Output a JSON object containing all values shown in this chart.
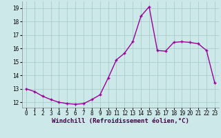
{
  "x": [
    0,
    1,
    2,
    3,
    4,
    5,
    6,
    7,
    8,
    9,
    10,
    11,
    12,
    13,
    14,
    15,
    16,
    17,
    18,
    19,
    20,
    21,
    22,
    23
  ],
  "y": [
    13.0,
    12.8,
    12.45,
    12.2,
    12.0,
    11.9,
    11.85,
    11.9,
    12.2,
    12.55,
    13.8,
    15.15,
    15.65,
    16.5,
    18.4,
    19.1,
    15.85,
    15.8,
    16.45,
    16.5,
    16.45,
    16.35,
    15.85,
    13.45
  ],
  "xlabel": "Windchill (Refroidissement éolien,°C)",
  "line_color": "#990099",
  "marker": "+",
  "bg_color": "#cce8e8",
  "grid_color": "#aacccc",
  "ylim_min": 11.6,
  "ylim_max": 19.5,
  "xlim_min": -0.5,
  "xlim_max": 23.5,
  "yticks": [
    12,
    13,
    14,
    15,
    16,
    17,
    18,
    19
  ],
  "xticks": [
    0,
    1,
    2,
    3,
    4,
    5,
    6,
    7,
    8,
    9,
    10,
    11,
    12,
    13,
    14,
    15,
    16,
    17,
    18,
    19,
    20,
    21,
    22,
    23
  ],
  "tick_fontsize": 5.5,
  "xlabel_fontsize": 6.5,
  "xlabel_color": "#440044",
  "tick_color": "#000000",
  "spine_color": "#888888",
  "linewidth": 1.0,
  "markersize": 3.5,
  "markeredgewidth": 1.0
}
